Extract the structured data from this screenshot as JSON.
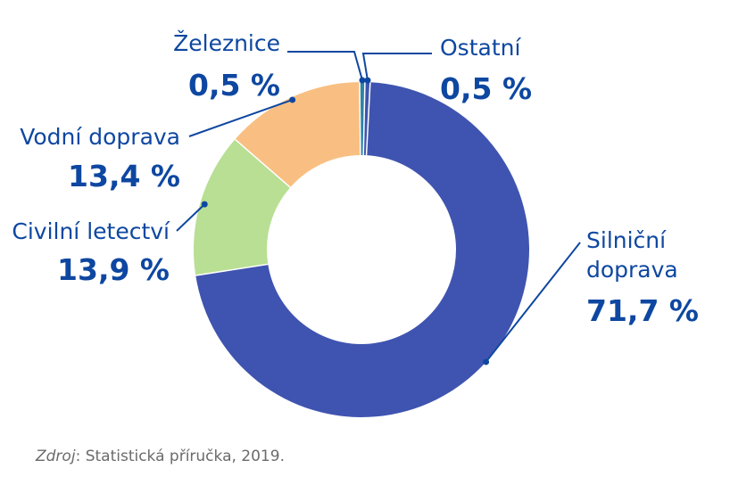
{
  "chart_data": {
    "type": "pie",
    "title": "",
    "unit": "%",
    "slices": [
      {
        "name": "Silniční doprava",
        "display_lines": [
          "Silniční",
          "doprava"
        ],
        "value": 71.7,
        "value_label": "71,7 %",
        "color": "#3f54b0"
      },
      {
        "name": "Civilní letectví",
        "display_lines": [
          "Civilní letectví"
        ],
        "value": 13.9,
        "value_label": "13,9 %",
        "color": "#b8df93"
      },
      {
        "name": "Vodní doprava",
        "display_lines": [
          "Vodní doprava"
        ],
        "value": 13.4,
        "value_label": "13,4 %",
        "color": "#f9bf82"
      },
      {
        "name": "Železnice",
        "display_lines": [
          "Železnice"
        ],
        "value": 0.5,
        "value_label": "0,5 %",
        "color": "#2d84a6"
      },
      {
        "name": "Ostatní",
        "display_lines": [
          "Ostatní"
        ],
        "value": 0.5,
        "value_label": "0,5 %",
        "color": "#3f54b0"
      }
    ]
  },
  "source": {
    "prefix": "Zdroj",
    "text": ": Statistická příručka, 2019."
  },
  "colors": {
    "label": "#0e47a1",
    "leader_line": "#0e47a1",
    "source_text": "#6b6b6b"
  }
}
